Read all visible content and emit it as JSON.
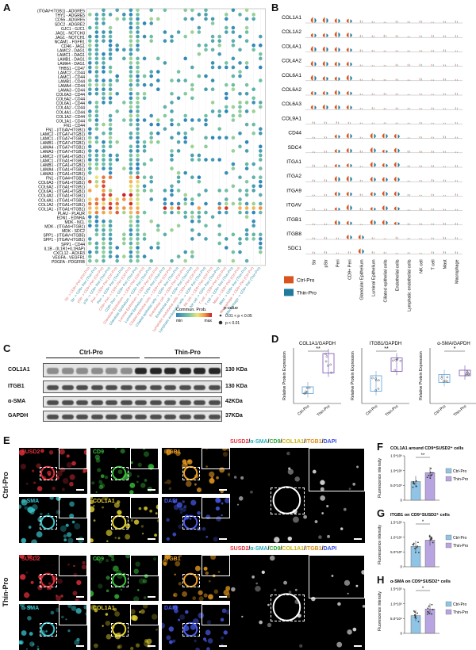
{
  "panels": {
    "a": "A",
    "b": "B",
    "c": "C",
    "d": "D",
    "e": "E",
    "f": "F",
    "g": "G",
    "h": "H"
  },
  "panel_a": {
    "rows": [
      "(ITGAV+ITGB1) - ADGRE5",
      "THY1 - ADGRE5",
      "CD55 - ADGRE5",
      "SDC2 - ADGRE2",
      "GJC1 - GJC1",
      "JAG1 - NOTCH3",
      "JAG1 - NOTCH1",
      "NCAM1 - FGFR1",
      "CD46 - JAG1",
      "LAMC2 - DAG1",
      "LAMC1 - DAG1",
      "LAMB1 - DAG1",
      "LAMA4 - DAG1",
      "THBS1 - CD47",
      "LAMC2 - CD44",
      "LAMC1 - CD44",
      "LAMB1 - CD44",
      "LAMA4 - CD44",
      "LAMA3 - CD44",
      "COL6A3 - CD44",
      "COL6A2 - CD44",
      "COL6A1 - CD44",
      "COL4A2 - CD44",
      "COL4A1 - CD44",
      "COL1A2 - CD44",
      "COL1A1 - CD44",
      "FN1 - CD44",
      "FN1 - (ITGAV+ITGB1)",
      "LAMC2 - (ITGA7+ITGB1)",
      "LAMC1 - (ITGA7+ITGB1)",
      "LAMB1 - (ITGA7+ITGB1)",
      "LAMA4 - (ITGA7+ITGB1)",
      "LAMA3 - (ITGA7+ITGB1)",
      "LAMC2 - (ITGA1+ITGB1)",
      "LAMC1 - (ITGA1+ITGB1)",
      "LAMB1 - (ITGA1+ITGB1)",
      "LAMA4 - (ITGA1+ITGB1)",
      "LAMA3 - (ITGA1+ITGB1)",
      "FN1 - (ITGA4+ITGB1)",
      "COL6A3 - (ITGA1+ITGB1)",
      "COL6A2 - (ITGA1+ITGB1)",
      "COL6A1 - (ITGA1+ITGB1)",
      "COL4A2 - (ITGA1+ITGB1)",
      "COL4A1 - (ITGA1+ITGB1)",
      "COL1A2 - (ITGA1+ITGB1)",
      "COL1A1 - (ITGA1+ITGB1)",
      "PLAU - PLAUR",
      "EDN1 - EDNRA",
      "MDK - NCL",
      "MDK - (ITGA4+ITGB1)",
      "MDK - SDC2",
      "SPP1 - (ITGAV+ITGB5)",
      "SPP1 - (ITGAV+ITGB1)",
      "SPP1 - CD44",
      "IL1B - (IL1R1+IL1RAP)",
      "CXCL12 - ACKR3",
      "VEGFA - VEGFR1",
      "PDGFA - PDGFRB"
    ],
    "columns": [
      "Str -> CD9+ Peri (Ctrl-Pro)",
      "Str -> CD9+ Peri (Thin-Pro)",
      "pStr -> CD9+ Peri (Ctrl-Pro)",
      "pStr -> CD9+ Peri (Thin-Pro)",
      "Peri -> CD9+ Peri (Ctrl-Pro)",
      "Peri -> CD9+ Peri (Thin-Pro)",
      "CD9+ Peri -> CD9+ Peri (Ctrl-Pro)",
      "CD9+ Peri -> CD9+ Peri (Thin-Pro)",
      "Glandular Epithelium -> CD9+ Peri (Ctrl-Pro)",
      "Glandular Epithelium -> CD9+ Peri (Thin-Pro)",
      "Luminal Epithelium -> CD9+ Peri (Ctrl-Pro)",
      "Luminal Epithelium -> CD9+ Peri (Thin-Pro)",
      "Ciliated epithelial cells -> CD9+ Peri (Ctrl-Pro)",
      "Ciliated epithelial cells -> CD9+ Peri (Thin-Pro)",
      "Endothelial cell -> CD9+ Peri (Ctrl-Pro)",
      "Endothelial cell -> CD9+ Peri (Thin-Pro)",
      "Lymphatic endothelial cells -> CD9+ Peri (Ctrl-Pro)",
      "Lymphatic endothelial cells -> CD9+ Peri (Thin-Pro)",
      "NK cell -> CD9+ Peri (Ctrl-Pro)",
      "NK cell -> CD9+ Peri (Thin-Pro)",
      "T cell -> CD9+ Peri (Ctrl-Pro)",
      "T cell -> CD9+ Peri (Thin-Pro)",
      "Mast -> CD9+ Peri (Ctrl-Pro)",
      "Mast -> CD9+ Peri (Thin-Pro)",
      "Macrophage -> CD9+ Peri (Ctrl-Pro)",
      "Macrophage -> CD9+ Peri (Thin-Pro)"
    ],
    "legend": {
      "commun_title": "Commun. Prob.",
      "min": "min",
      "max": "max",
      "pvalue_title": "p-value",
      "p_mid": "0.01 < p < 0.05",
      "p_low": "p < 0.01"
    },
    "colors": {
      "ctrl_label": "#e07070",
      "thin_label": "#2b8fa8"
    }
  },
  "panel_b": {
    "genes": [
      "COL1A1",
      "COL1A2",
      "COL4A1",
      "COL4A2",
      "COL6A1",
      "COL6A2",
      "COL6A3",
      "COL9A1",
      "CD44",
      "SDC4",
      "ITGA1",
      "ITGA2",
      "ITGA9",
      "ITGAV",
      "ITGB1",
      "ITGB8",
      "SDC1"
    ],
    "cell_types": [
      "Str",
      "pStr",
      "Peri",
      "CD9+ Peri",
      "Glandular Epithelium",
      "Luminal Epithelium",
      "Ciliated epithelial cells",
      "Endothelial cells",
      "Lymphatic endothelial cells",
      "NK cell",
      "T cell",
      "Mast",
      "Macrophage"
    ],
    "legend": [
      {
        "label": "Ctrl-Pro",
        "color": "#d9541e"
      },
      {
        "label": "Thin-Pro",
        "color": "#1f7a9c"
      }
    ]
  },
  "panel_c": {
    "group_ctrl": "Ctrl-Pro",
    "group_thin": "Thin-Pro",
    "rows": [
      {
        "label": "COL1A1",
        "size": "130 KDa"
      },
      {
        "label": "ITGB1",
        "size": "130 KDa"
      },
      {
        "label": "α-SMA",
        "size": "42KDa"
      },
      {
        "label": "GAPDH",
        "size": "37KDa"
      }
    ]
  },
  "panel_d": {
    "ylabel": "Relative Protein Expression",
    "xcats": [
      "Ctrl-Pro",
      "Thin-Pro"
    ],
    "plots": [
      {
        "title": "COL1A1/GAPDH",
        "sig": "**"
      },
      {
        "title": "ITGB1/GAPDH",
        "sig": "**"
      },
      {
        "title": "α-SMA/GAPDH",
        "sig": "*"
      }
    ]
  },
  "panel_e": {
    "group_ctrl": "Ctrl-Pro",
    "group_thin": "Thin-Pro",
    "channels": [
      {
        "label": "SUSD2",
        "color": "#e8303a"
      },
      {
        "label": "CD9",
        "color": "#39c23c"
      },
      {
        "label": "ITGB1",
        "color": "#f0a020"
      },
      {
        "label": "α-SMA",
        "color": "#39c8d0"
      },
      {
        "label": "COL1A1",
        "color": "#e6d530"
      },
      {
        "label": "DAPI",
        "color": "#4a5cf0"
      }
    ],
    "merge": {
      "parts": [
        {
          "t": "SUSD2",
          "c": "#e8303a"
        },
        {
          "t": "/",
          "c": "#111111"
        },
        {
          "t": "α-SMA",
          "c": "#2ab0c0"
        },
        {
          "t": "/",
          "c": "#111111"
        },
        {
          "t": "CD9",
          "c": "#2da832"
        },
        {
          "t": "/",
          "c": "#111111"
        },
        {
          "t": "COL1A1",
          "c": "#c9b410"
        },
        {
          "t": "/",
          "c": "#111111"
        },
        {
          "t": "ITGB1",
          "c": "#e08a10"
        },
        {
          "t": "/",
          "c": "#111111"
        },
        {
          "t": "DAPI",
          "c": "#3a4ce0"
        }
      ]
    }
  },
  "panel_fgh": {
    "ylabel": "Fluorescence intensity",
    "legend": [
      {
        "label": "Ctrl-Pro",
        "color": "#8fc4e6"
      },
      {
        "label": "Thin-Pro",
        "color": "#b8a4e0"
      }
    ],
    "plots": [
      {
        "key": "F",
        "title": "COL1A1 around CD9⁺SUSD2⁺ cells",
        "sig": "**",
        "yticks": [
          "1.5*10⁶",
          "1.0*10⁶",
          "5.0*10⁵",
          "0"
        ],
        "ctrl": 0.42,
        "thin": 0.62
      },
      {
        "key": "G",
        "title": "ITGB1 on CD9⁺SUSD2⁺ cells",
        "sig": "*",
        "yticks": [
          "1.5*10⁶",
          "1.0*10⁶",
          "5.0*10⁵",
          "0"
        ],
        "ctrl": 0.46,
        "thin": 0.6
      },
      {
        "key": "H",
        "title": "α-SMA on CD9⁺SUSD2⁺ cells",
        "sig": "*",
        "yticks": [
          "1.5*10⁵",
          "1.0*10⁵",
          "5.0*10⁴",
          "0"
        ],
        "ctrl": 0.4,
        "thin": 0.55
      }
    ]
  }
}
